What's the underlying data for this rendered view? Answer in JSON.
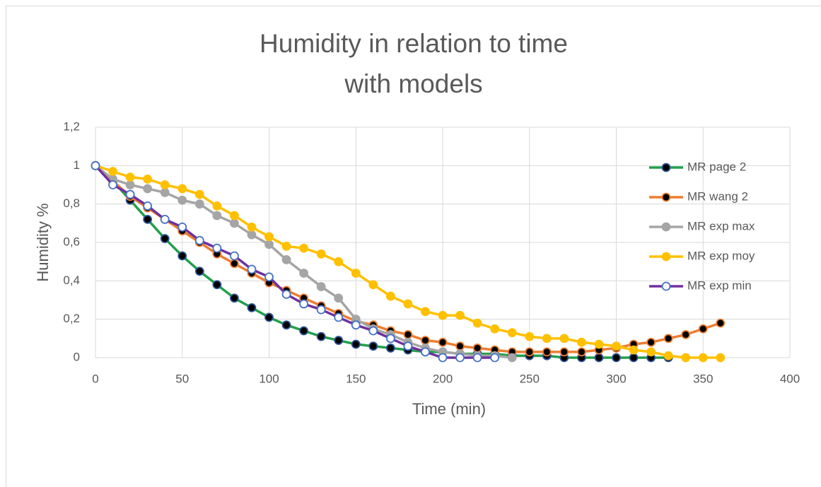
{
  "chart_data": {
    "type": "line",
    "title": [
      "Humidity in relation to time",
      "with models"
    ],
    "x_label": "Time (min)",
    "y_label": "Humidity %",
    "x": [
      0,
      10,
      20,
      30,
      40,
      50,
      60,
      70,
      80,
      90,
      100,
      110,
      120,
      130,
      140,
      150,
      160,
      170,
      180,
      190,
      200,
      210,
      220,
      230,
      240,
      250,
      260,
      270,
      280,
      290,
      300,
      310,
      320,
      330,
      340,
      350,
      360
    ],
    "series": [
      {
        "name": "MR page 2",
        "color": "#22a04b",
        "marker_fill": "#000000",
        "marker_edge": "#2f5597",
        "values": [
          1,
          0.92,
          0.82,
          0.72,
          0.62,
          0.53,
          0.45,
          0.38,
          0.31,
          0.26,
          0.21,
          0.17,
          0.14,
          0.11,
          0.09,
          0.07,
          0.06,
          0.05,
          0.04,
          0.03,
          0.03,
          0.02,
          0.02,
          0.02,
          0.01,
          0.01,
          0.01,
          0,
          0,
          0,
          0,
          0,
          0,
          0,
          null,
          null,
          null
        ]
      },
      {
        "name": "MR wang 2",
        "color": "#ed7d31",
        "marker_fill": "#000000",
        "marker_edge": "#ed7d31",
        "values": [
          1,
          0.92,
          0.84,
          0.78,
          0.72,
          0.66,
          0.6,
          0.54,
          0.49,
          0.44,
          0.39,
          0.35,
          0.31,
          0.27,
          0.23,
          0.19,
          0.17,
          0.14,
          0.12,
          0.09,
          0.08,
          0.06,
          0.05,
          0.04,
          0.03,
          0.03,
          0.03,
          0.03,
          0.03,
          0.04,
          0.05,
          0.07,
          0.08,
          0.1,
          0.12,
          0.15,
          0.18
        ]
      },
      {
        "name": "MR exp max",
        "color": "#a5a5a5",
        "marker_fill": "#a5a5a5",
        "marker_edge": "#a5a5a5",
        "values": [
          1,
          0.93,
          0.9,
          0.88,
          0.86,
          0.82,
          0.8,
          0.74,
          0.7,
          0.64,
          0.59,
          0.51,
          0.44,
          0.37,
          0.31,
          0.2,
          0.15,
          0.12,
          0.08,
          0.05,
          0.03,
          0.02,
          0.01,
          0.01,
          0,
          null,
          null,
          null,
          null,
          null,
          null,
          null,
          null,
          null,
          null,
          null,
          null
        ]
      },
      {
        "name": "MR exp moy",
        "color": "#ffc000",
        "marker_fill": "#ffc000",
        "marker_edge": "#ffc000",
        "values": [
          1,
          0.97,
          0.94,
          0.93,
          0.9,
          0.88,
          0.85,
          0.79,
          0.74,
          0.68,
          0.63,
          0.58,
          0.57,
          0.54,
          0.5,
          0.44,
          0.38,
          0.32,
          0.28,
          0.24,
          0.22,
          0.22,
          0.18,
          0.15,
          0.13,
          0.11,
          0.1,
          0.1,
          0.08,
          0.07,
          0.06,
          0.04,
          0.03,
          0.01,
          0,
          0,
          0
        ]
      },
      {
        "name": "MR exp min",
        "color": "#7030a0",
        "marker_fill": "#ffffff",
        "marker_edge": "#4472c4",
        "values": [
          1,
          0.9,
          0.85,
          0.79,
          0.72,
          0.68,
          0.61,
          0.57,
          0.53,
          0.46,
          0.42,
          0.33,
          0.28,
          0.25,
          0.21,
          0.17,
          0.14,
          0.1,
          0.06,
          0.03,
          0,
          0,
          0,
          0,
          null,
          null,
          null,
          null,
          null,
          null,
          null,
          null,
          null,
          null,
          null,
          null,
          null
        ]
      }
    ],
    "xlim": [
      0,
      400
    ],
    "xticks": [
      0,
      50,
      100,
      150,
      200,
      250,
      300,
      350,
      400
    ],
    "ylim": [
      0,
      1.2
    ],
    "yticks": [
      0,
      {
        "value": 0.2,
        "label": "0,2"
      },
      {
        "value": 0.4,
        "label": "0,4"
      },
      {
        "value": 0.6,
        "label": "0,6"
      },
      {
        "value": 0.8,
        "label": "0,8"
      },
      1,
      {
        "value": 1.2,
        "label": "1,2"
      }
    ],
    "grid": true,
    "legend": "right"
  }
}
